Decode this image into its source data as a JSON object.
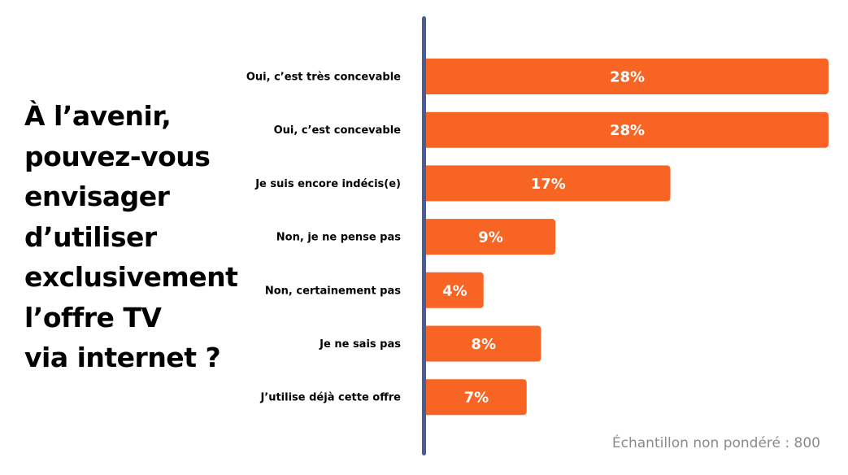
{
  "question": "À l’avenir,\npouvez-vous\nenvisager\nd’utiliser\nexclusivement\nl’offre TV\nvia internet ?",
  "note": "Échantillon non pondéré : 800",
  "colors": {
    "bar": "#f76424",
    "axis": "#4a5c96",
    "text": "#000000",
    "note": "#8a8a8a"
  },
  "chart_data": {
    "type": "bar",
    "orientation": "horizontal",
    "categories": [
      "Oui, c’est très concevable",
      "Oui, c’est concevable",
      "Je suis encore indécis(e)",
      "Non, je ne pense pas",
      "Non, certainement pas",
      "Je ne sais pas",
      "J’utilise déjà cette offre"
    ],
    "values": [
      28,
      28,
      17,
      9,
      4,
      8,
      7
    ],
    "value_labels": [
      "28%",
      "28%",
      "17%",
      "9%",
      "4%",
      "8%",
      "7%"
    ],
    "unit": "%",
    "xlim": [
      0,
      28
    ],
    "grid": false,
    "legend": "none"
  }
}
